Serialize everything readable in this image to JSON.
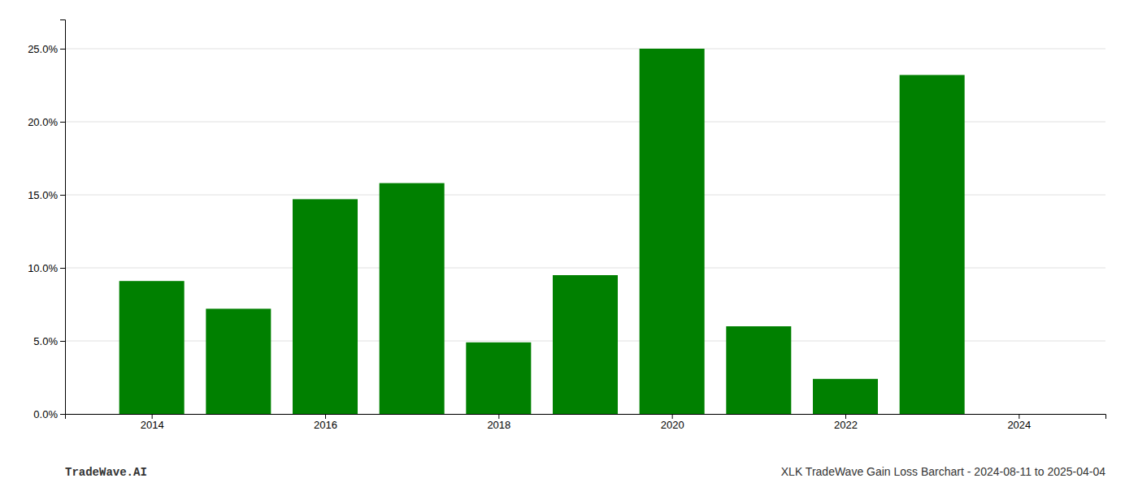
{
  "chart_data": {
    "type": "bar",
    "x": [
      2014,
      2015,
      2016,
      2017,
      2018,
      2019,
      2020,
      2021,
      2022,
      2023
    ],
    "values": [
      0.091,
      0.072,
      0.147,
      0.158,
      0.049,
      0.095,
      0.25,
      0.06,
      0.024,
      0.232
    ],
    "color": "#008000",
    "xlim": [
      2013.0,
      2025.0
    ],
    "xticks": [
      2014,
      2016,
      2018,
      2020,
      2022,
      2024
    ],
    "ylim": [
      0,
      0.27
    ],
    "yticks": [
      {
        "value": 0.0,
        "label": "0.0%"
      },
      {
        "value": 0.05,
        "label": "5.0%"
      },
      {
        "value": 0.1,
        "label": "10.0%"
      },
      {
        "value": 0.15,
        "label": "15.0%"
      },
      {
        "value": 0.2,
        "label": "20.0%"
      },
      {
        "value": 0.25,
        "label": "25.0%"
      }
    ],
    "grid": true,
    "annotations": [
      "TradeWave.AI",
      "XLK TradeWave Gain Loss Barchart - 2024-08-11 to 2025-04-04"
    ]
  }
}
